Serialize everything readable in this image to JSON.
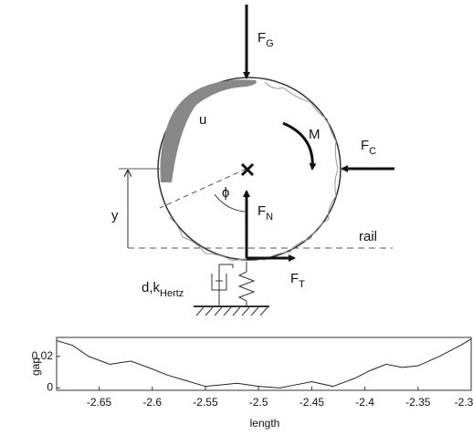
{
  "diagram": {
    "labels": {
      "gravity": {
        "base": "F",
        "sub": "G"
      },
      "wear": "u",
      "moment": "M",
      "contact": {
        "base": "F",
        "sub": "C"
      },
      "height": "y",
      "angle": "ϕ",
      "normal": {
        "base": "F",
        "sub": "N"
      },
      "rail": "rail",
      "support": {
        "base": "d,k",
        "sub": "Hertz"
      },
      "traction": {
        "base": "F",
        "sub": "T"
      }
    }
  },
  "chart_data": {
    "type": "line",
    "xlabel": "length",
    "ylabel": "gap",
    "x": [
      -2.69,
      -2.675,
      -2.66,
      -2.64,
      -2.62,
      -2.6,
      -2.585,
      -2.57,
      -2.55,
      -2.535,
      -2.52,
      -2.5,
      -2.48,
      -2.465,
      -2.45,
      -2.43,
      -2.41,
      -2.395,
      -2.38,
      -2.365,
      -2.35,
      -2.33,
      -2.31,
      -2.3
    ],
    "series": [
      {
        "color": "#222222",
        "values": [
          0.03,
          0.027,
          0.02,
          0.015,
          0.017,
          0.012,
          0.008,
          0.005,
          0.001,
          0.002,
          0.003,
          0.001,
          0.0,
          0.002,
          0.004,
          0.001,
          0.006,
          0.011,
          0.015,
          0.013,
          0.014,
          0.02,
          0.027,
          0.031
        ]
      }
    ],
    "xlim": [
      -2.69,
      -2.3
    ],
    "xticks": [
      -2.65,
      -2.6,
      -2.55,
      -2.5,
      -2.45,
      -2.4,
      -2.35,
      -2.3
    ],
    "ylim": [
      -0.0015,
      0.032
    ],
    "yticks": [
      0,
      0.02
    ]
  }
}
